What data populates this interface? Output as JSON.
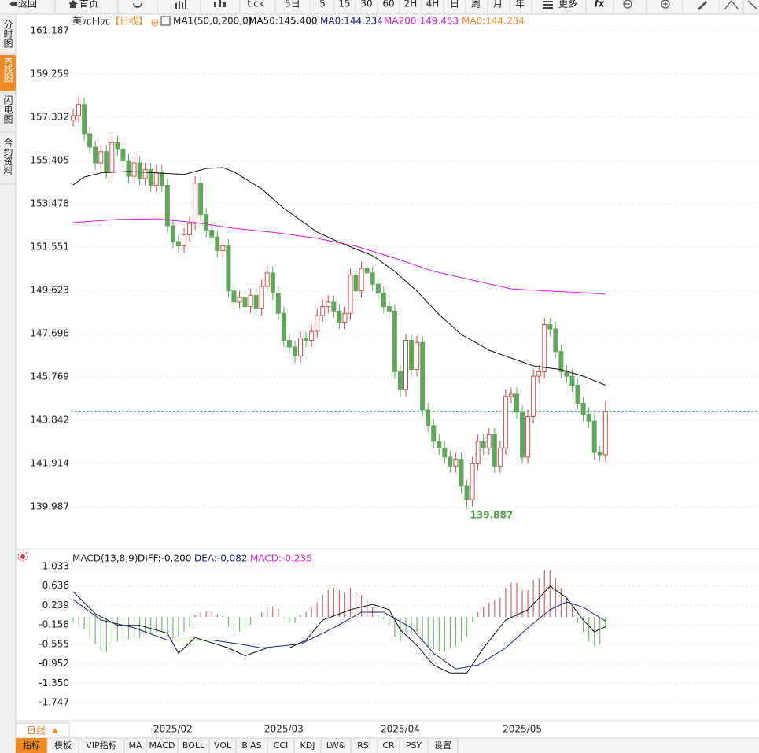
{
  "toolbar": [
    "返回",
    "首页",
    "tick",
    "5日",
    "5",
    "15",
    "30",
    "60",
    "2H",
    "4H",
    "日",
    "周",
    "月",
    "年",
    "更多",
    "fx"
  ],
  "sidebar": [
    "分时图",
    "K线图",
    "闪电图",
    "合约资料"
  ],
  "bottom_bar": {
    "period": "日线",
    "tabs": [
      "指标",
      "模板",
      "VIP指标",
      "MA",
      "MACD",
      "BOLL",
      "VOL",
      "BIAS",
      "CCI",
      "KDJ",
      "LW&",
      "RSI",
      "CR",
      "PSY",
      "设置"
    ]
  },
  "chart_data": [
    {
      "type": "candlestick",
      "title": "美元日元",
      "period": "【日线】",
      "indicator": "MA1(50,0,200,0)",
      "categories": [
        null,
        null,
        null,
        null,
        null,
        null,
        null,
        null,
        null,
        null,
        null,
        null,
        null,
        null,
        null,
        null,
        null,
        null,
        "2025/02",
        null,
        null,
        null,
        null,
        null,
        null,
        null,
        null,
        null,
        null,
        null,
        null,
        null,
        null,
        null,
        null,
        null,
        null,
        null,
        "2025/03",
        null,
        null,
        null,
        null,
        null,
        null,
        null,
        null,
        null,
        null,
        null,
        null,
        null,
        null,
        null,
        null,
        null,
        null,
        null,
        null,
        "2025/04",
        null,
        null,
        null,
        null,
        null,
        null,
        null,
        null,
        null,
        null,
        null,
        null,
        null,
        null,
        null,
        null,
        null,
        null,
        null,
        null,
        null,
        "2025/05",
        null,
        null,
        null,
        null,
        null,
        null,
        null,
        null,
        null,
        null,
        null,
        null,
        null,
        null,
        null
      ],
      "open": [
        157.2,
        157.4,
        157.9,
        156.6,
        156.0,
        155.3,
        155.8,
        154.9,
        156.2,
        155.9,
        155.4,
        154.7,
        155.3,
        154.6,
        155.0,
        154.3,
        154.9,
        154.3,
        152.5,
        151.8,
        151.6,
        152.1,
        152.6,
        154.4,
        153.0,
        152.3,
        152.0,
        151.4,
        151.6,
        149.6,
        149.1,
        149.3,
        148.9,
        149.4,
        148.8,
        149.8,
        150.4,
        149.5,
        148.6,
        147.4,
        147.1,
        146.7,
        147.5,
        147.4,
        147.8,
        148.5,
        148.9,
        149.1,
        148.7,
        148.2,
        148.6,
        150.3,
        149.6,
        150.6,
        150.4,
        149.9,
        149.5,
        148.9,
        148.7,
        146.0,
        145.2,
        147.4,
        146.1,
        147.3,
        144.3,
        143.6,
        142.9,
        142.6,
        142.2,
        141.8,
        142.1,
        140.9,
        140.3,
        141.9,
        142.9,
        142.6,
        143.2,
        141.8,
        142.6,
        144.9,
        145.0,
        144.2,
        142.2,
        144.0,
        145.8,
        146.0,
        148.1,
        147.9,
        146.9,
        146.0,
        145.8,
        145.4,
        144.6,
        144.1,
        143.8,
        142.4,
        142.3
      ],
      "high": [
        157.7,
        158.2,
        158.2,
        156.9,
        156.3,
        156.1,
        156.1,
        156.5,
        156.5,
        156.2,
        155.7,
        155.6,
        155.6,
        155.3,
        155.3,
        155.2,
        155.2,
        154.6,
        152.8,
        152.1,
        152.4,
        152.9,
        154.7,
        154.7,
        153.3,
        152.6,
        152.3,
        151.9,
        151.9,
        149.9,
        149.6,
        149.6,
        149.7,
        149.7,
        150.1,
        150.7,
        150.7,
        149.8,
        148.9,
        147.7,
        147.4,
        147.8,
        147.8,
        148.1,
        148.8,
        149.2,
        149.4,
        149.4,
        149.0,
        148.9,
        150.6,
        150.6,
        150.9,
        150.9,
        150.7,
        150.2,
        149.8,
        149.2,
        149.0,
        146.3,
        147.7,
        147.7,
        147.6,
        147.6,
        144.6,
        143.9,
        143.2,
        142.9,
        142.5,
        142.4,
        142.4,
        141.2,
        142.2,
        143.2,
        143.2,
        143.5,
        143.5,
        142.9,
        145.2,
        145.3,
        145.3,
        144.5,
        144.3,
        146.1,
        146.3,
        148.4,
        148.4,
        148.2,
        147.2,
        146.3,
        146.1,
        145.7,
        144.9,
        144.4,
        144.1,
        142.7,
        144.7
      ],
      "low": [
        156.9,
        157.1,
        156.3,
        155.7,
        155.0,
        155.0,
        154.6,
        154.6,
        155.6,
        155.1,
        154.4,
        154.4,
        154.3,
        154.3,
        154.0,
        154.0,
        154.0,
        152.2,
        151.5,
        151.3,
        151.3,
        151.8,
        152.3,
        152.7,
        152.0,
        151.7,
        151.1,
        151.1,
        149.3,
        148.8,
        148.8,
        148.6,
        148.6,
        148.5,
        148.5,
        149.5,
        149.2,
        148.3,
        147.1,
        146.8,
        146.4,
        146.4,
        147.1,
        147.1,
        147.5,
        148.2,
        148.6,
        148.4,
        147.9,
        147.9,
        148.3,
        149.3,
        149.3,
        150.1,
        149.6,
        149.2,
        148.6,
        148.4,
        145.7,
        144.9,
        144.9,
        145.8,
        145.8,
        144.0,
        143.3,
        142.6,
        142.3,
        141.9,
        141.5,
        141.5,
        140.6,
        139.887,
        140.0,
        141.6,
        142.3,
        142.3,
        141.5,
        141.5,
        142.3,
        144.6,
        143.9,
        141.9,
        141.9,
        143.7,
        145.5,
        145.7,
        147.6,
        146.6,
        145.7,
        145.5,
        145.1,
        144.3,
        143.8,
        143.5,
        142.1,
        142.0,
        142.0
      ],
      "close": [
        157.4,
        157.9,
        156.6,
        156.0,
        155.3,
        155.8,
        154.9,
        156.2,
        155.9,
        155.4,
        154.7,
        155.3,
        154.6,
        155.0,
        154.3,
        154.9,
        154.3,
        152.5,
        151.8,
        151.6,
        152.1,
        152.6,
        154.4,
        153.0,
        152.3,
        152.0,
        151.4,
        151.6,
        149.6,
        149.1,
        149.3,
        148.9,
        149.4,
        148.8,
        149.8,
        150.4,
        149.5,
        148.6,
        147.4,
        147.1,
        146.7,
        147.5,
        147.4,
        147.8,
        148.5,
        148.9,
        149.1,
        148.7,
        148.2,
        148.6,
        150.3,
        149.6,
        150.6,
        150.4,
        149.9,
        149.5,
        148.9,
        148.7,
        146.0,
        145.2,
        147.4,
        146.1,
        147.3,
        144.3,
        143.6,
        142.9,
        142.6,
        142.2,
        141.8,
        142.1,
        140.9,
        140.3,
        141.9,
        142.9,
        142.6,
        143.2,
        141.8,
        142.6,
        144.9,
        145.0,
        144.2,
        142.2,
        144.0,
        145.8,
        146.0,
        148.1,
        147.9,
        146.9,
        146.0,
        145.8,
        145.4,
        144.6,
        144.1,
        143.8,
        142.4,
        142.3,
        144.234
      ],
      "up_color": "#d04a4a",
      "down_color": "#5fa85a",
      "overlays": [
        {
          "name": "MA50:145.400",
          "color": "#111111",
          "x": [
            0,
            2,
            5,
            10,
            15,
            20,
            24,
            27,
            29,
            34,
            38,
            44,
            48,
            54,
            58,
            62,
            66,
            70,
            75,
            79,
            83,
            88,
            92,
            96
          ],
          "values": [
            154.32,
            154.67,
            154.85,
            154.92,
            154.85,
            154.78,
            155.05,
            155.09,
            154.9,
            154.14,
            153.27,
            152.22,
            151.76,
            151.17,
            150.47,
            149.59,
            148.54,
            147.66,
            146.96,
            146.61,
            146.26,
            146.09,
            145.8,
            145.4
          ]
        },
        {
          "name": "MA200:149.453",
          "color": "#d81fd8",
          "x": [
            0,
            8,
            15,
            22,
            29,
            37,
            44,
            51,
            58,
            65,
            72,
            79,
            86,
            92,
            96
          ],
          "values": [
            152.64,
            152.78,
            152.81,
            152.64,
            152.39,
            152.18,
            151.94,
            151.59,
            151.06,
            150.47,
            150.08,
            149.69,
            149.59,
            149.52,
            149.453
          ]
        }
      ],
      "reference_line": {
        "name": "MA0:144.234",
        "value": 144.234,
        "color": "#1f9e9e"
      },
      "ylim": [
        138.095,
        161.853
      ],
      "yticks": [
        161.187,
        159.259,
        157.332,
        155.405,
        153.478,
        151.551,
        149.623,
        147.696,
        145.769,
        143.842,
        141.914,
        139.987
      ],
      "grid": true
    },
    {
      "type": "macd",
      "title": "MACD(13,8,9)",
      "histogram": {
        "name": "MACD:-0.235",
        "color": "#d81fd8",
        "up_color": "#c96a6a",
        "down_color": "#6cbf6a",
        "values": [
          -0.1,
          -0.15,
          -0.25,
          -0.4,
          -0.55,
          -0.7,
          -0.72,
          -0.55,
          -0.5,
          -0.45,
          -0.45,
          -0.4,
          -0.42,
          -0.35,
          -0.35,
          -0.3,
          -0.3,
          -0.4,
          -0.45,
          -0.4,
          -0.3,
          -0.2,
          0.05,
          0.1,
          0.12,
          0.1,
          0.05,
          0.02,
          -0.2,
          -0.3,
          -0.3,
          -0.25,
          -0.15,
          -0.05,
          0.1,
          0.2,
          0.22,
          0.15,
          -0.02,
          -0.1,
          -0.12,
          0.05,
          0.1,
          0.2,
          0.3,
          0.45,
          0.55,
          0.6,
          0.55,
          0.5,
          0.6,
          0.5,
          0.45,
          0.35,
          0.2,
          0.05,
          -0.05,
          -0.15,
          -0.4,
          -0.5,
          -0.3,
          -0.35,
          -0.3,
          -0.5,
          -0.6,
          -0.65,
          -0.7,
          -0.7,
          -0.65,
          -0.6,
          -0.5,
          -0.4,
          -0.1,
          0.1,
          0.2,
          0.3,
          0.35,
          0.4,
          0.6,
          0.7,
          0.7,
          0.55,
          0.55,
          0.75,
          0.8,
          0.95,
          0.95,
          0.8,
          0.6,
          0.4,
          0.2,
          -0.1,
          -0.3,
          -0.5,
          -0.6,
          -0.55,
          -0.235
        ]
      },
      "series": [
        {
          "name": "DIFF:-0.200",
          "color": "#111111",
          "x": [
            0,
            4,
            8,
            12,
            17,
            19,
            22,
            28,
            31,
            35,
            39,
            42,
            45,
            50,
            54,
            57,
            59,
            62,
            65,
            68,
            71,
            74,
            78,
            82,
            86,
            89,
            92,
            94,
            96
          ],
          "values": [
            0.52,
            0.07,
            -0.17,
            -0.17,
            -0.33,
            -0.74,
            -0.42,
            -0.63,
            -0.79,
            -0.63,
            -0.63,
            -0.47,
            -0.06,
            0.15,
            0.26,
            0.15,
            -0.26,
            -0.58,
            -0.98,
            -1.14,
            -1.14,
            -0.63,
            -0.06,
            0.15,
            0.63,
            0.39,
            -0.06,
            -0.3,
            -0.2
          ]
        },
        {
          "name": "DEA:-0.082",
          "color": "#1a237e",
          "x": [
            0,
            5,
            11,
            17,
            21,
            25,
            30,
            34,
            41,
            47,
            52,
            56,
            61,
            65,
            69,
            73,
            78,
            82,
            86,
            89,
            92,
            96
          ],
          "values": [
            0.36,
            -0.06,
            -0.22,
            -0.47,
            -0.47,
            -0.47,
            -0.55,
            -0.63,
            -0.55,
            -0.22,
            0.1,
            0.1,
            -0.22,
            -0.74,
            -1.06,
            -0.98,
            -0.63,
            -0.22,
            0.15,
            0.31,
            0.2,
            -0.082
          ]
        }
      ],
      "ylim": [
        -2.1,
        1.16
      ],
      "yticks": [
        1.033,
        0.636,
        0.239,
        -0.158,
        -0.555,
        -0.952,
        {
          "value": -1.35,
          "label": "-1.350"
        },
        -1.747
      ],
      "grid": true
    }
  ]
}
